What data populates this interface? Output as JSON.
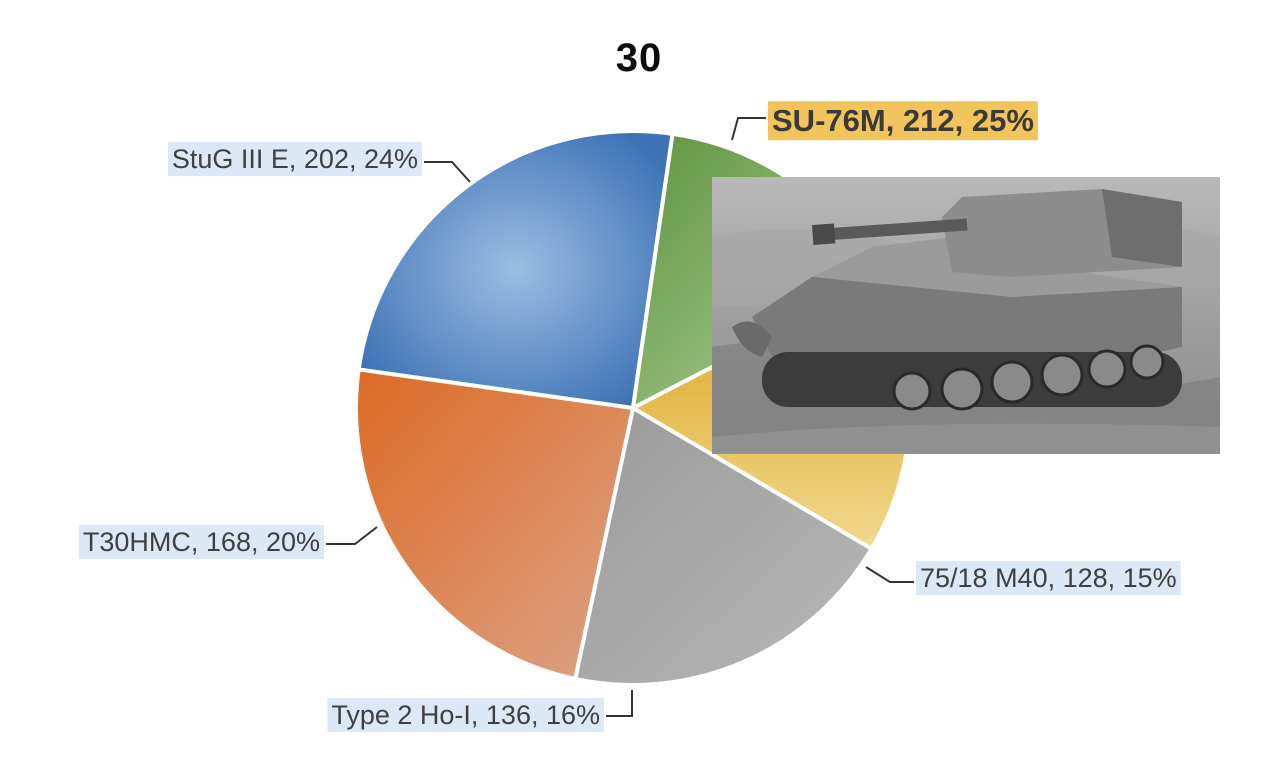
{
  "chart_data": {
    "type": "pie",
    "title": "30",
    "slices": [
      {
        "label": "SU-76M, 212, 25%",
        "name": "SU-76M",
        "value": 212,
        "percent": 25,
        "color": "#4f81bd",
        "highlight": true
      },
      {
        "label": "75/18 M40, 128, 15%",
        "name": "75/18 M40",
        "value": 128,
        "percent": 15,
        "color": "#77a55a",
        "highlight": false
      },
      {
        "label": "Type 2 Ho-I, 136, 16%",
        "name": "Type 2 Ho-I",
        "value": 136,
        "percent": 16,
        "color": "#e2b43a",
        "highlight": false
      },
      {
        "label": "T30HMC, 168, 20%",
        "name": "T30HMC",
        "value": 168,
        "percent": 20,
        "color": "#9c9c9c",
        "highlight": false
      },
      {
        "label": "StuG III E, 202, 24%",
        "name": "StuG III E",
        "value": 202,
        "percent": 24,
        "color": "#d8723a",
        "highlight": false
      }
    ],
    "legend": "none",
    "label_style": "callout"
  },
  "highlight_colors": {
    "highlight_label_bg": "#f2c45c",
    "label_bg": "#dce8f5"
  }
}
